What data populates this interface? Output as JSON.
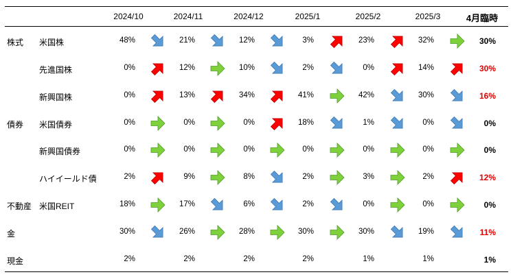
{
  "table": {
    "header": {
      "months": [
        "2024/10",
        "2024/11",
        "2024/12",
        "2025/1",
        "2025/2",
        "2025/3"
      ],
      "final": "4月臨時"
    },
    "rows": [
      {
        "category": "株式",
        "name": "米国株",
        "values": [
          "48%",
          "21%",
          "12%",
          "3%",
          "23%",
          "32%"
        ],
        "arrows": [
          "down",
          "down",
          "down",
          "up",
          "up",
          "right"
        ],
        "final": "30%",
        "final_color": "#000000"
      },
      {
        "category": "",
        "name": "先進国株",
        "values": [
          "0%",
          "12%",
          "10%",
          "2%",
          "0%",
          "14%"
        ],
        "arrows": [
          "up",
          "right",
          "down",
          "down",
          "up",
          "up"
        ],
        "final": "30%",
        "final_color": "#e00000"
      },
      {
        "category": "",
        "name": "新興国株",
        "values": [
          "0%",
          "13%",
          "34%",
          "41%",
          "42%",
          "30%"
        ],
        "arrows": [
          "up",
          "up",
          "up",
          "right",
          "down",
          "down"
        ],
        "final": "16%",
        "final_color": "#e00000"
      },
      {
        "category": "債券",
        "name": "米国債券",
        "values": [
          "0%",
          "0%",
          "0%",
          "18%",
          "1%",
          "0%"
        ],
        "arrows": [
          "right",
          "right",
          "up",
          "down",
          "down",
          "down"
        ],
        "final": "0%",
        "final_color": "#000000"
      },
      {
        "category": "",
        "name": "新興国債券",
        "values": [
          "0%",
          "0%",
          "0%",
          "0%",
          "0%",
          "0%"
        ],
        "arrows": [
          "right",
          "right",
          "right",
          "right",
          "right",
          "right"
        ],
        "final": "0%",
        "final_color": "#000000"
      },
      {
        "category": "",
        "name": "ハイイールド債",
        "values": [
          "2%",
          "9%",
          "8%",
          "2%",
          "3%",
          "2%"
        ],
        "arrows": [
          "up",
          "right",
          "down",
          "right",
          "right",
          "up"
        ],
        "final": "12%",
        "final_color": "#e00000"
      },
      {
        "category": "不動産",
        "name": "米国REIT",
        "values": [
          "18%",
          "17%",
          "6%",
          "2%",
          "0%",
          "0%"
        ],
        "arrows": [
          "right",
          "down",
          "down",
          "down",
          "right",
          "right"
        ],
        "final": "0%",
        "final_color": "#000000"
      },
      {
        "category": "金",
        "name": "",
        "values": [
          "30%",
          "26%",
          "28%",
          "30%",
          "30%",
          "19%"
        ],
        "arrows": [
          "down",
          "right",
          "right",
          "right",
          "down",
          "down"
        ],
        "final": "11%",
        "final_color": "#e00000"
      },
      {
        "category": "現金",
        "name": "",
        "values": [
          "2%",
          "2%",
          "2%",
          "2%",
          "1%",
          "1%"
        ],
        "arrows": [
          "",
          "",
          "",
          "",
          "",
          ""
        ],
        "final": "1%",
        "final_color": "#000000"
      }
    ]
  },
  "arrow_colors": {
    "up": "#ff0000",
    "right": "#7fd13b",
    "down": "#5b9bd5"
  }
}
